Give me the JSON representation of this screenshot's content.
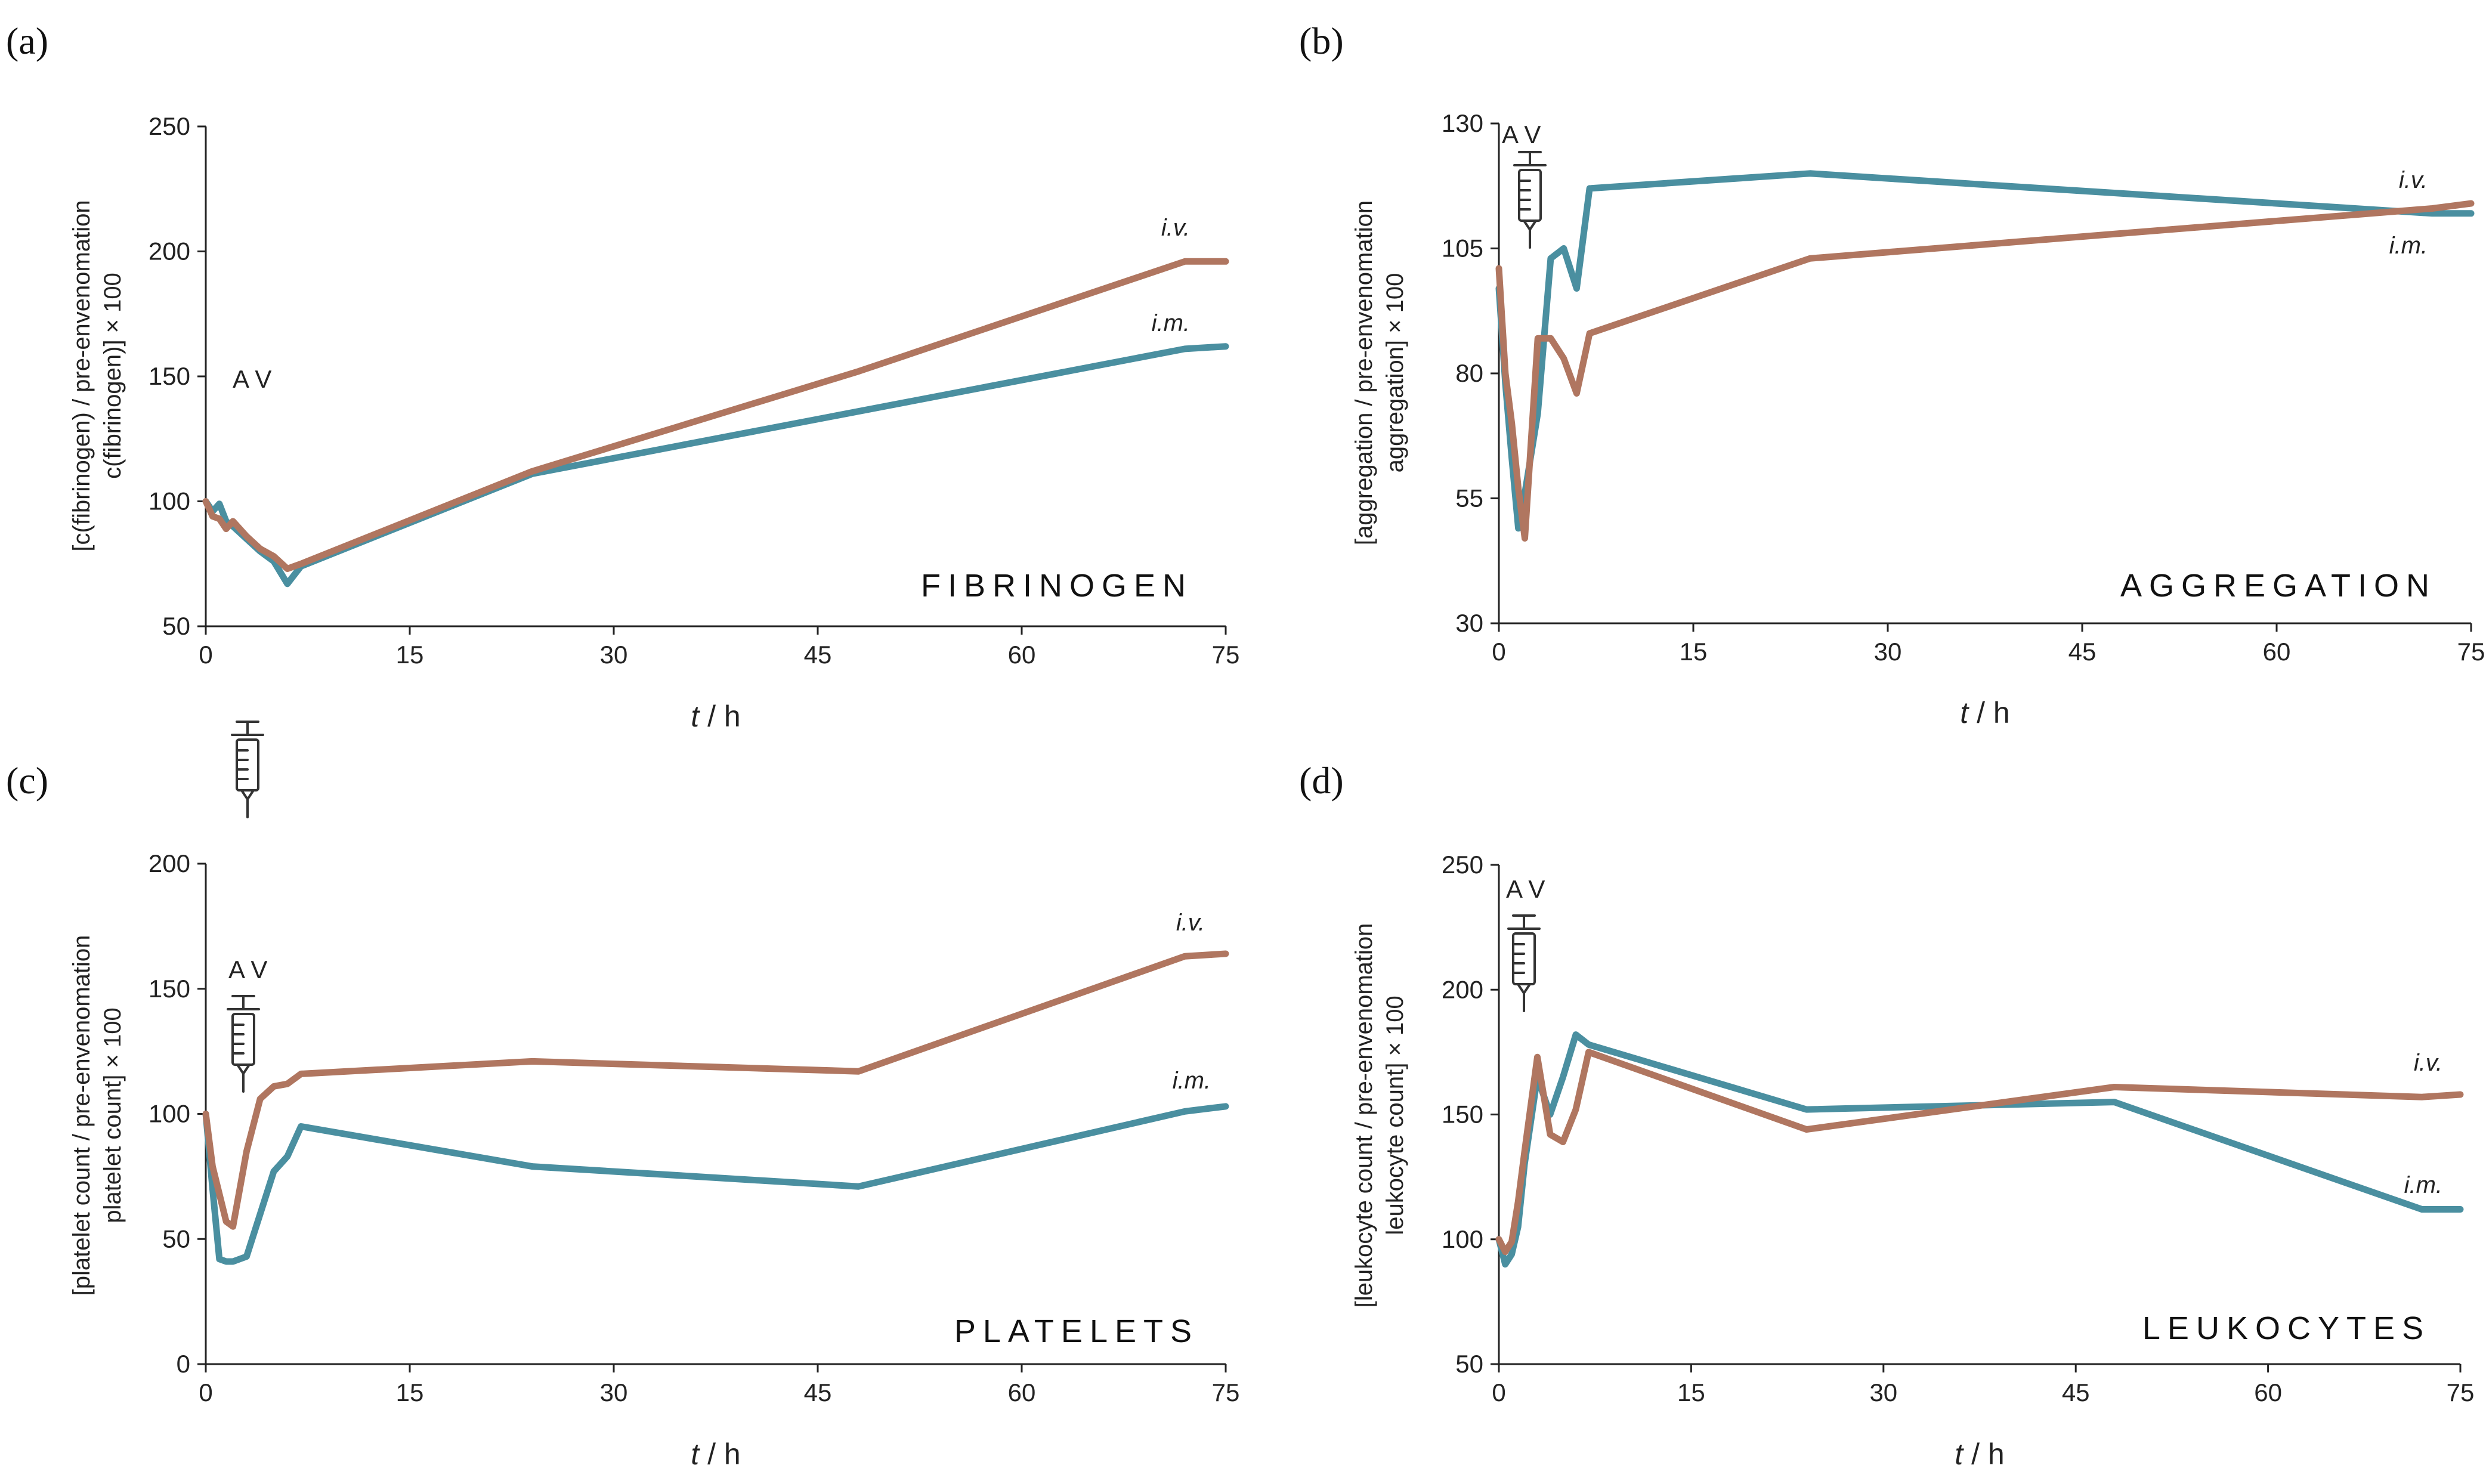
{
  "chart_data": [
    {
      "type": "line",
      "panel_label": "(a)",
      "title": "FIBRINOGEN",
      "ylabel_line1": "[c(fibrinogen) / pre-envenomation",
      "ylabel_line2": "c(fibrinogen)] × 100",
      "xlabel_italic": "t",
      "xlabel_rest": " / h",
      "annotation": "A V",
      "xlim": [
        0,
        75
      ],
      "ylim": [
        50,
        250
      ],
      "xticks": [
        0,
        15,
        30,
        45,
        60,
        75
      ],
      "yticks": [
        50,
        100,
        150,
        200,
        250
      ],
      "series": [
        {
          "name": "i.m.",
          "color": "#4a8fa0",
          "points": [
            [
              0,
              100
            ],
            [
              0.5,
              96
            ],
            [
              1,
              99
            ],
            [
              1.5,
              92
            ],
            [
              2,
              90
            ],
            [
              3,
              85
            ],
            [
              4,
              80
            ],
            [
              5,
              76
            ],
            [
              6,
              67
            ],
            [
              7,
              74
            ],
            [
              24,
              111
            ],
            [
              72,
              161
            ],
            [
              75,
              162
            ]
          ]
        },
        {
          "name": "i.v.",
          "color": "#b07660",
          "points": [
            [
              0,
              100
            ],
            [
              0.5,
              94
            ],
            [
              1,
              93
            ],
            [
              1.5,
              89
            ],
            [
              2,
              92
            ],
            [
              3,
              86
            ],
            [
              4,
              81
            ],
            [
              5,
              78
            ],
            [
              6,
              73
            ],
            [
              7,
              75
            ],
            [
              24,
              112
            ],
            [
              48,
              152
            ],
            [
              72,
              196
            ],
            [
              75,
              196
            ]
          ]
        }
      ]
    },
    {
      "type": "line",
      "panel_label": "(b)",
      "title": "AGGREGATION",
      "ylabel_line1": "[aggregation / pre-envenomation",
      "ylabel_line2": "aggregation] × 100",
      "xlabel_italic": "t",
      "xlabel_rest": " / h",
      "annotation": "A V",
      "xlim": [
        0,
        75
      ],
      "ylim": [
        30,
        130
      ],
      "xticks": [
        0,
        15,
        30,
        45,
        60,
        75
      ],
      "yticks": [
        30,
        55,
        80,
        105,
        130
      ],
      "series": [
        {
          "name": "i.m.",
          "color": "#4a8fa0",
          "points": [
            [
              0,
              97
            ],
            [
              0.5,
              78
            ],
            [
              1,
              63
            ],
            [
              1.5,
              49
            ],
            [
              2,
              56
            ],
            [
              3,
              72
            ],
            [
              4,
              103
            ],
            [
              5,
              105
            ],
            [
              6,
              97
            ],
            [
              7,
              117
            ],
            [
              24,
              120
            ],
            [
              48,
              116
            ],
            [
              72,
              112
            ],
            [
              75,
              112
            ]
          ]
        },
        {
          "name": "i.v.",
          "color": "#b07660",
          "points": [
            [
              0,
              101
            ],
            [
              0.5,
              80
            ],
            [
              1,
              70
            ],
            [
              1.5,
              57
            ],
            [
              2,
              47
            ],
            [
              3,
              87
            ],
            [
              4,
              87
            ],
            [
              5,
              83
            ],
            [
              6,
              76
            ],
            [
              7,
              88
            ],
            [
              24,
              103
            ],
            [
              48,
              108
            ],
            [
              72,
              113
            ],
            [
              75,
              114
            ]
          ]
        }
      ]
    },
    {
      "type": "line",
      "panel_label": "(c)",
      "title": "PLATELETS",
      "ylabel_line1": "[platelet count / pre-envenomation",
      "ylabel_line2": "platelet count] × 100",
      "xlabel_italic": "t",
      "xlabel_rest": " / h",
      "annotation": "A V",
      "xlim": [
        0,
        75
      ],
      "ylim": [
        0,
        200
      ],
      "xticks": [
        0,
        15,
        30,
        45,
        60,
        75
      ],
      "yticks": [
        0,
        50,
        100,
        150,
        200
      ],
      "series": [
        {
          "name": "i.m.",
          "color": "#4a8fa0",
          "points": [
            [
              0,
              100
            ],
            [
              0.5,
              70
            ],
            [
              1,
              42
            ],
            [
              1.5,
              41
            ],
            [
              2,
              41
            ],
            [
              3,
              43
            ],
            [
              4,
              60
            ],
            [
              5,
              77
            ],
            [
              6,
              83
            ],
            [
              7,
              95
            ],
            [
              24,
              79
            ],
            [
              48,
              71
            ],
            [
              72,
              101
            ],
            [
              75,
              103
            ]
          ]
        },
        {
          "name": "i.v.",
          "color": "#b07660",
          "points": [
            [
              0,
              100
            ],
            [
              0.5,
              79
            ],
            [
              1,
              68
            ],
            [
              1.5,
              57
            ],
            [
              2,
              55
            ],
            [
              3,
              85
            ],
            [
              4,
              106
            ],
            [
              5,
              111
            ],
            [
              6,
              112
            ],
            [
              7,
              116
            ],
            [
              24,
              121
            ],
            [
              48,
              117
            ],
            [
              72,
              163
            ],
            [
              75,
              164
            ]
          ]
        }
      ]
    },
    {
      "type": "line",
      "panel_label": "(d)",
      "title": "LEUKOCYTES",
      "ylabel_line1": "[leukocyte count / pre-envenomation",
      "ylabel_line2": "leukocyte count] × 100",
      "xlabel_italic": "t",
      "xlabel_rest": " / h",
      "annotation": "A V",
      "xlim": [
        0,
        75
      ],
      "ylim": [
        50,
        250
      ],
      "xticks": [
        0,
        15,
        30,
        45,
        60,
        75
      ],
      "yticks": [
        50,
        100,
        150,
        200,
        250
      ],
      "series": [
        {
          "name": "i.m.",
          "color": "#4a8fa0",
          "points": [
            [
              0,
              100
            ],
            [
              0.5,
              90
            ],
            [
              1,
              94
            ],
            [
              1.5,
              105
            ],
            [
              2,
              130
            ],
            [
              3,
              165
            ],
            [
              4,
              150
            ],
            [
              5,
              165
            ],
            [
              6,
              182
            ],
            [
              7,
              178
            ],
            [
              24,
              152
            ],
            [
              48,
              155
            ],
            [
              72,
              112
            ],
            [
              75,
              112
            ]
          ]
        },
        {
          "name": "i.v.",
          "color": "#b07660",
          "points": [
            [
              0,
              100
            ],
            [
              0.5,
              95
            ],
            [
              1,
              99
            ],
            [
              1.5,
              115
            ],
            [
              2,
              135
            ],
            [
              3,
              173
            ],
            [
              4,
              142
            ],
            [
              5,
              139
            ],
            [
              6,
              152
            ],
            [
              7,
              175
            ],
            [
              24,
              144
            ],
            [
              48,
              161
            ],
            [
              72,
              157
            ],
            [
              75,
              158
            ]
          ]
        }
      ]
    }
  ]
}
